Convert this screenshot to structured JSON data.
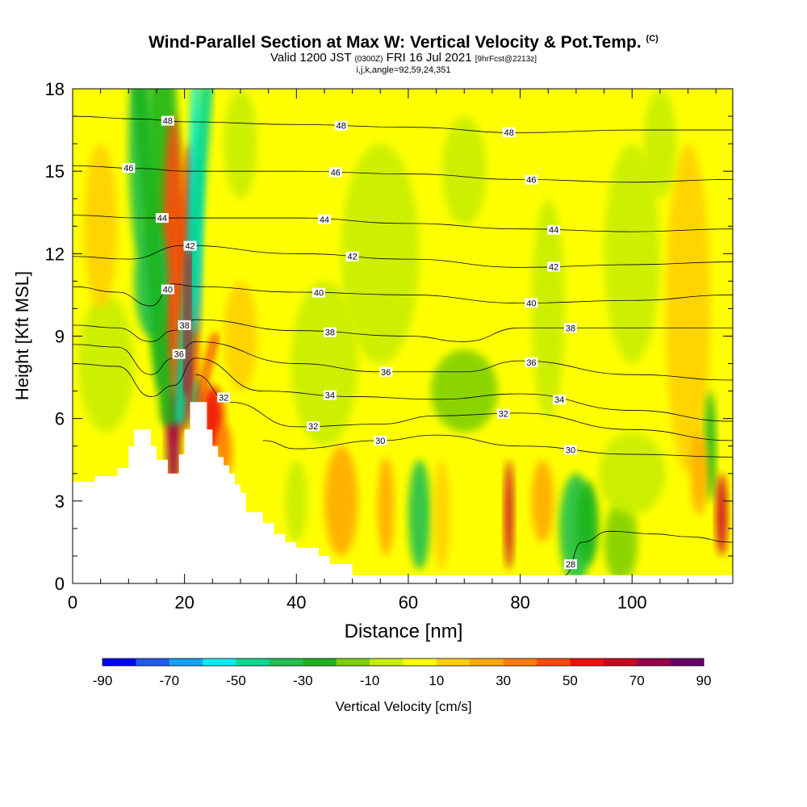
{
  "title": {
    "main": "Wind-Parallel Section at Max W: Vertical Velocity & Pot.Temp.",
    "copyright": "(C)",
    "valid_prefix": "Valid 1200 JST",
    "valid_utc": "(0300Z)",
    "valid_date": "FRI 16 Jul 2021",
    "forecast": "[9hrFcst@2213z]",
    "indices": "i,j,k,angle=92,59,24,351"
  },
  "chart_data": {
    "type": "heatmap",
    "xlabel": "Distance [nm]",
    "ylabel": "Height [Kft MSL]",
    "xlim": [
      0,
      118
    ],
    "ylim": [
      0,
      18
    ],
    "x_ticks": [
      0,
      20,
      40,
      60,
      80,
      100
    ],
    "y_ticks": [
      0,
      3,
      6,
      9,
      12,
      15,
      18
    ],
    "colorbar": {
      "label": "Vertical Velocity [cm/s]",
      "tick_labels": [
        "-90",
        "-70",
        "-50",
        "-30",
        "-10",
        "10",
        "30",
        "50",
        "70",
        "90"
      ],
      "colors": [
        "#0000ff",
        "#1f5bf0",
        "#0ea5f5",
        "#00f0f0",
        "#00d890",
        "#22c050",
        "#1eb41e",
        "#80d000",
        "#c8ee00",
        "#ffff00",
        "#ffd000",
        "#ffaa00",
        "#ff7f00",
        "#ff4a10",
        "#f01010",
        "#cc0020",
        "#99004a",
        "#660066"
      ]
    },
    "terrain_profile": [
      [
        0,
        3.7
      ],
      [
        4,
        3.7
      ],
      [
        4,
        3.9
      ],
      [
        8,
        3.9
      ],
      [
        8,
        4.2
      ],
      [
        10,
        4.2
      ],
      [
        10,
        5.0
      ],
      [
        11,
        5.0
      ],
      [
        11,
        5.6
      ],
      [
        14,
        5.6
      ],
      [
        14,
        5.0
      ],
      [
        15,
        5.0
      ],
      [
        15,
        4.5
      ],
      [
        17,
        4.5
      ],
      [
        17,
        4.0
      ],
      [
        19,
        4.0
      ],
      [
        19,
        4.7
      ],
      [
        20,
        4.7
      ],
      [
        20,
        5.6
      ],
      [
        21,
        5.6
      ],
      [
        21,
        6.6
      ],
      [
        24,
        6.6
      ],
      [
        24,
        5.6
      ],
      [
        25,
        5.6
      ],
      [
        25,
        5.0
      ],
      [
        26,
        5.0
      ],
      [
        26,
        4.6
      ],
      [
        27,
        4.6
      ],
      [
        27,
        4.3
      ],
      [
        28,
        4.3
      ],
      [
        28,
        4.0
      ],
      [
        29,
        4.0
      ],
      [
        29,
        3.6
      ],
      [
        30,
        3.6
      ],
      [
        30,
        3.3
      ],
      [
        31,
        3.3
      ],
      [
        31,
        2.6
      ],
      [
        34,
        2.6
      ],
      [
        34,
        2.2
      ],
      [
        36,
        2.2
      ],
      [
        36,
        1.8
      ],
      [
        38,
        1.8
      ],
      [
        38,
        1.5
      ],
      [
        40,
        1.5
      ],
      [
        40,
        1.3
      ],
      [
        44,
        1.3
      ],
      [
        44,
        1.0
      ],
      [
        46,
        1.0
      ],
      [
        46,
        0.7
      ],
      [
        50,
        0.7
      ],
      [
        50,
        0.3
      ],
      [
        118,
        0.3
      ]
    ],
    "theta_contours": [
      {
        "label": "48",
        "values": [
          [
            0,
            17.0
          ],
          [
            12,
            16.9
          ],
          [
            20,
            16.8
          ],
          [
            40,
            16.7
          ],
          [
            60,
            16.6
          ],
          [
            80,
            16.4
          ],
          [
            100,
            16.5
          ],
          [
            118,
            16.5
          ]
        ],
        "label_x": [
          17,
          48,
          78
        ]
      },
      {
        "label": "46",
        "values": [
          [
            0,
            15.2
          ],
          [
            12,
            15.1
          ],
          [
            20,
            15.0
          ],
          [
            40,
            15.0
          ],
          [
            60,
            14.9
          ],
          [
            80,
            14.7
          ],
          [
            100,
            14.6
          ],
          [
            118,
            14.7
          ]
        ],
        "label_x": [
          10,
          47,
          82
        ]
      },
      {
        "label": "44",
        "values": [
          [
            0,
            13.4
          ],
          [
            12,
            13.3
          ],
          [
            20,
            13.3
          ],
          [
            40,
            13.3
          ],
          [
            60,
            13.1
          ],
          [
            80,
            12.9
          ],
          [
            100,
            12.8
          ],
          [
            118,
            12.9
          ]
        ],
        "label_x": [
          16,
          45,
          86
        ]
      },
      {
        "label": "42",
        "values": [
          [
            0,
            11.9
          ],
          [
            10,
            11.8
          ],
          [
            20,
            12.3
          ],
          [
            40,
            12.0
          ],
          [
            60,
            11.8
          ],
          [
            80,
            11.5
          ],
          [
            100,
            11.6
          ],
          [
            118,
            11.7
          ]
        ],
        "label_x": [
          21,
          50,
          86
        ]
      },
      {
        "label": "40",
        "values": [
          [
            0,
            10.8
          ],
          [
            8,
            10.6
          ],
          [
            14,
            10.1
          ],
          [
            18,
            10.9
          ],
          [
            22,
            10.8
          ],
          [
            40,
            10.6
          ],
          [
            60,
            10.5
          ],
          [
            80,
            10.2
          ],
          [
            100,
            10.3
          ],
          [
            118,
            10.5
          ]
        ],
        "label_x": [
          17,
          44,
          82
        ]
      },
      {
        "label": "38",
        "values": [
          [
            0,
            9.4
          ],
          [
            8,
            9.3
          ],
          [
            14,
            8.8
          ],
          [
            18,
            9.2
          ],
          [
            22,
            9.6
          ],
          [
            40,
            9.2
          ],
          [
            60,
            9.0
          ],
          [
            70,
            8.8
          ],
          [
            80,
            9.3
          ],
          [
            100,
            9.3
          ],
          [
            118,
            9.3
          ]
        ],
        "label_x": [
          20,
          46,
          89
        ]
      },
      {
        "label": "36",
        "values": [
          [
            0,
            8.7
          ],
          [
            8,
            8.6
          ],
          [
            14,
            7.6
          ],
          [
            18,
            8.2
          ],
          [
            22,
            8.8
          ],
          [
            40,
            8.0
          ],
          [
            55,
            7.7
          ],
          [
            70,
            7.7
          ],
          [
            80,
            8.1
          ],
          [
            100,
            7.6
          ],
          [
            118,
            7.4
          ]
        ],
        "label_x": [
          19,
          56,
          82
        ]
      },
      {
        "label": "34",
        "values": [
          [
            0,
            8.0
          ],
          [
            8,
            7.9
          ],
          [
            14,
            6.8
          ],
          [
            18,
            7.2
          ],
          [
            22,
            8.2
          ],
          [
            34,
            7.0
          ],
          [
            50,
            6.8
          ],
          [
            65,
            6.7
          ],
          [
            80,
            6.9
          ],
          [
            100,
            6.3
          ],
          [
            118,
            5.9
          ]
        ],
        "label_x": [
          46,
          87
        ]
      },
      {
        "label": "32",
        "values": [
          [
            22,
            7.6
          ],
          [
            28,
            6.6
          ],
          [
            40,
            5.7
          ],
          [
            55,
            5.8
          ],
          [
            65,
            6.1
          ],
          [
            80,
            6.2
          ],
          [
            100,
            5.6
          ],
          [
            118,
            5.2
          ]
        ],
        "label_x": [
          27,
          43,
          77
        ]
      },
      {
        "label": "30",
        "values": [
          [
            34,
            5.2
          ],
          [
            40,
            4.9
          ],
          [
            55,
            5.2
          ],
          [
            65,
            5.4
          ],
          [
            80,
            5.0
          ],
          [
            100,
            4.7
          ],
          [
            118,
            4.6
          ]
        ],
        "label_x": [
          55,
          89
        ]
      },
      {
        "label": "28",
        "values": [
          [
            88,
            0.3
          ],
          [
            91,
            1.5
          ],
          [
            96,
            1.9
          ],
          [
            104,
            1.8
          ],
          [
            110,
            1.7
          ],
          [
            118,
            1.5
          ]
        ],
        "label_x": [
          89
        ]
      }
    ]
  }
}
